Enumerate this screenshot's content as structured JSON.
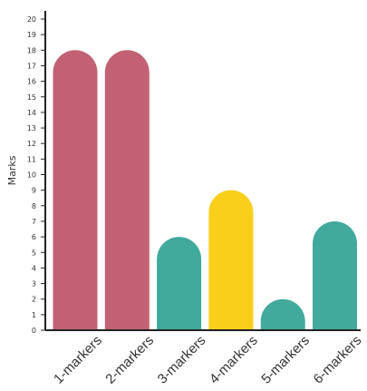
{
  "chart_data": {
    "type": "bar",
    "categories": [
      "1-markers",
      "2-markers",
      "3-markers",
      "4-markers",
      "5-markers",
      "6-markers"
    ],
    "values": [
      18,
      18,
      6,
      9,
      2,
      7
    ],
    "bar_colors": [
      "#C26174",
      "#C26174",
      "#42AA9D",
      "#F9CF1A",
      "#42AA9D",
      "#42AA9D"
    ],
    "ylabel": "Marks",
    "xlabel": "",
    "ylim": [
      0,
      20
    ],
    "yticks": [
      0,
      1,
      2,
      3,
      4,
      5,
      6,
      7,
      8,
      9,
      10,
      11,
      12,
      13,
      14,
      15,
      16,
      17,
      18,
      19,
      20
    ],
    "bar_shape": "rounded-top",
    "grid": false,
    "axis_color": "#222222"
  }
}
